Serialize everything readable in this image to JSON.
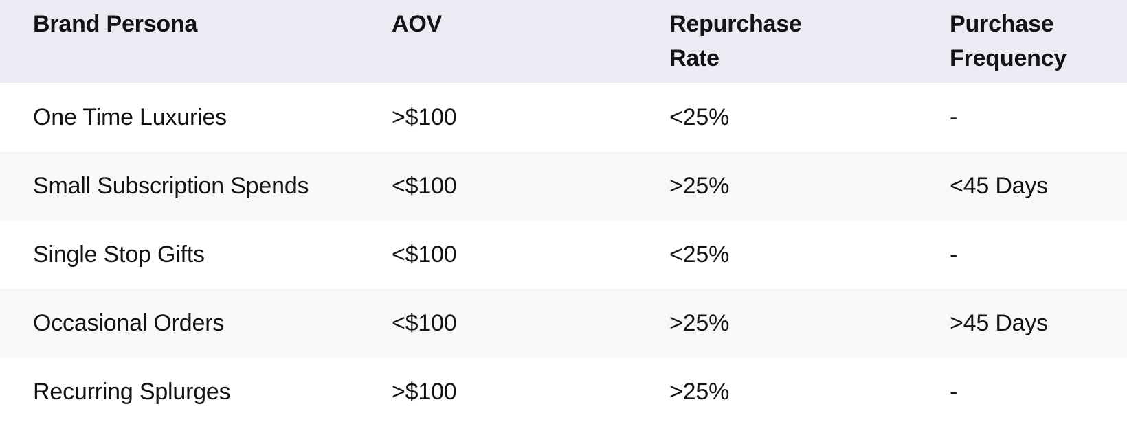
{
  "table": {
    "columns": {
      "persona": "Brand Persona",
      "aov": "AOV",
      "repurchase_rate": "Repurchase\nRate",
      "purchase_frequency": "Purchase\nFrequency"
    },
    "rows": [
      {
        "persona": "One Time Luxuries",
        "aov": ">$100",
        "repurchase_rate": "<25%",
        "purchase_frequency": "-"
      },
      {
        "persona": "Small Subscription Spends",
        "aov": "<$100",
        "repurchase_rate": ">25%",
        "purchase_frequency": "<45 Days"
      },
      {
        "persona": "Single Stop Gifts",
        "aov": "<$100",
        "repurchase_rate": "<25%",
        "purchase_frequency": "-"
      },
      {
        "persona": "Occasional Orders",
        "aov": "<$100",
        "repurchase_rate": ">25%",
        "purchase_frequency": ">45 Days"
      },
      {
        "persona": "Recurring Splurges",
        "aov": ">$100",
        "repurchase_rate": ">25%",
        "purchase_frequency": "-"
      }
    ],
    "colors": {
      "header_bg": "#ECEBF4",
      "row_bg": "#FFFFFF",
      "row_alt_bg": "#F8F8FA",
      "text": "#131316"
    }
  },
  "chart_data": {
    "type": "table",
    "title": "",
    "columns": [
      "Brand Persona",
      "AOV",
      "Repurchase Rate",
      "Purchase Frequency"
    ],
    "rows": [
      [
        "One Time Luxuries",
        ">$100",
        "<25%",
        "-"
      ],
      [
        "Small Subscription Spends",
        "<$100",
        ">25%",
        "<45 Days"
      ],
      [
        "Single Stop Gifts",
        "<$100",
        "<25%",
        "-"
      ],
      [
        "Occasional Orders",
        "<$100",
        ">25%",
        ">45 Days"
      ],
      [
        "Recurring Splurges",
        ">$100",
        ">25%",
        "-"
      ]
    ]
  }
}
